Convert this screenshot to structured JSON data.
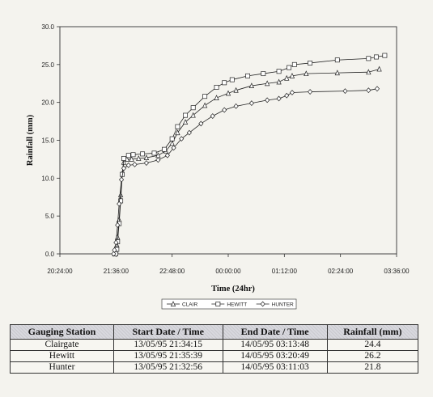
{
  "chart_data": {
    "type": "line",
    "title": "",
    "xlabel": "Time (24hr)",
    "ylabel": "Rainfall (mm)",
    "xlim": [
      "20:24:00",
      "03:36:00"
    ],
    "ylim": [
      0,
      30
    ],
    "x_ticks": [
      "20:24:00",
      "21:36:00",
      "22:48:00",
      "00:00:00",
      "01:12:00",
      "02:24:00",
      "03:36:00"
    ],
    "y_ticks": [
      "0.0",
      "5.0",
      "10.0",
      "15.0",
      "20.0",
      "25.0",
      "30.0"
    ],
    "grid": false,
    "legend_position": "bottom",
    "series": [
      {
        "name": "CLAIR",
        "marker": "triangle",
        "points": [
          [
            "21:34:15",
            0.0
          ],
          [
            "21:36:00",
            0.4
          ],
          [
            "21:37:00",
            1.2
          ],
          [
            "21:38:00",
            2.2
          ],
          [
            "21:40:00",
            4.5
          ],
          [
            "21:42:00",
            7.8
          ],
          [
            "21:44:00",
            10.6
          ],
          [
            "21:46:00",
            12.1
          ],
          [
            "21:50:00",
            12.5
          ],
          [
            "21:56:00",
            12.5
          ],
          [
            "22:05:00",
            12.6
          ],
          [
            "22:15:00",
            12.7
          ],
          [
            "22:30:00",
            13.0
          ],
          [
            "22:40:00",
            13.6
          ],
          [
            "22:48:00",
            14.6
          ],
          [
            "22:55:00",
            16.0
          ],
          [
            "23:05:00",
            17.4
          ],
          [
            "23:15:00",
            18.3
          ],
          [
            "23:30:00",
            19.6
          ],
          [
            "23:45:00",
            20.6
          ],
          [
            "00:00:00",
            21.2
          ],
          [
            "00:10:00",
            21.6
          ],
          [
            "00:30:00",
            22.2
          ],
          [
            "00:50:00",
            22.5
          ],
          [
            "01:05:00",
            22.7
          ],
          [
            "01:15:00",
            23.2
          ],
          [
            "01:22:00",
            23.5
          ],
          [
            "01:40:00",
            23.8
          ],
          [
            "02:20:00",
            23.9
          ],
          [
            "03:00:00",
            24.0
          ],
          [
            "03:13:48",
            24.4
          ]
        ]
      },
      {
        "name": "HEWITT",
        "marker": "square",
        "points": [
          [
            "21:35:39",
            0.0
          ],
          [
            "21:37:00",
            0.6
          ],
          [
            "21:38:00",
            1.6
          ],
          [
            "21:40:00",
            4.0
          ],
          [
            "21:42:00",
            7.0
          ],
          [
            "21:44:00",
            10.5
          ],
          [
            "21:46:00",
            12.6
          ],
          [
            "21:52:00",
            13.0
          ],
          [
            "21:58:00",
            13.1
          ],
          [
            "22:10:00",
            13.2
          ],
          [
            "22:25:00",
            13.3
          ],
          [
            "22:38:00",
            13.8
          ],
          [
            "22:48:00",
            15.2
          ],
          [
            "22:55:00",
            16.8
          ],
          [
            "23:05:00",
            18.3
          ],
          [
            "23:15:00",
            19.3
          ],
          [
            "23:30:00",
            20.8
          ],
          [
            "23:45:00",
            22.0
          ],
          [
            "23:55:00",
            22.6
          ],
          [
            "00:05:00",
            23.0
          ],
          [
            "00:25:00",
            23.5
          ],
          [
            "00:45:00",
            23.8
          ],
          [
            "01:05:00",
            24.1
          ],
          [
            "01:18:00",
            24.6
          ],
          [
            "01:25:00",
            25.0
          ],
          [
            "01:45:00",
            25.2
          ],
          [
            "02:20:00",
            25.6
          ],
          [
            "03:00:00",
            25.8
          ],
          [
            "03:10:00",
            26.0
          ],
          [
            "03:20:49",
            26.2
          ]
        ]
      },
      {
        "name": "HUNTER",
        "marker": "diamond",
        "points": [
          [
            "21:32:56",
            0.0
          ],
          [
            "21:34:00",
            0.5
          ],
          [
            "21:36:00",
            1.5
          ],
          [
            "21:38:00",
            3.8
          ],
          [
            "21:40:00",
            6.6
          ],
          [
            "21:43:00",
            9.8
          ],
          [
            "21:46:00",
            11.3
          ],
          [
            "21:52:00",
            11.7
          ],
          [
            "22:00:00",
            11.8
          ],
          [
            "22:15:00",
            12.0
          ],
          [
            "22:30:00",
            12.4
          ],
          [
            "22:42:00",
            13.0
          ],
          [
            "22:50:00",
            14.0
          ],
          [
            "23:00:00",
            15.2
          ],
          [
            "23:10:00",
            16.0
          ],
          [
            "23:25:00",
            17.2
          ],
          [
            "23:40:00",
            18.2
          ],
          [
            "23:55:00",
            19.0
          ],
          [
            "00:10:00",
            19.5
          ],
          [
            "00:30:00",
            19.9
          ],
          [
            "00:50:00",
            20.3
          ],
          [
            "01:05:00",
            20.5
          ],
          [
            "01:15:00",
            20.9
          ],
          [
            "01:22:00",
            21.3
          ],
          [
            "01:45:00",
            21.4
          ],
          [
            "02:30:00",
            21.5
          ],
          [
            "03:00:00",
            21.6
          ],
          [
            "03:11:03",
            21.8
          ]
        ]
      }
    ]
  },
  "table": {
    "headers": [
      "Gauging Station",
      "Start Date / Time",
      "End Date / Time",
      "Rainfall (mm)"
    ],
    "rows": [
      [
        "Clairgate",
        "13/05/95  21:34:15",
        "14/05/95  03:13:48",
        "24.4"
      ],
      [
        "Hewitt",
        "13/05/95  21:35:39",
        "14/05/95  03:20:49",
        "26.2"
      ],
      [
        "Hunter",
        "13/05/95  21:32:56",
        "14/05/95  03:11:03",
        "21.8"
      ]
    ]
  }
}
